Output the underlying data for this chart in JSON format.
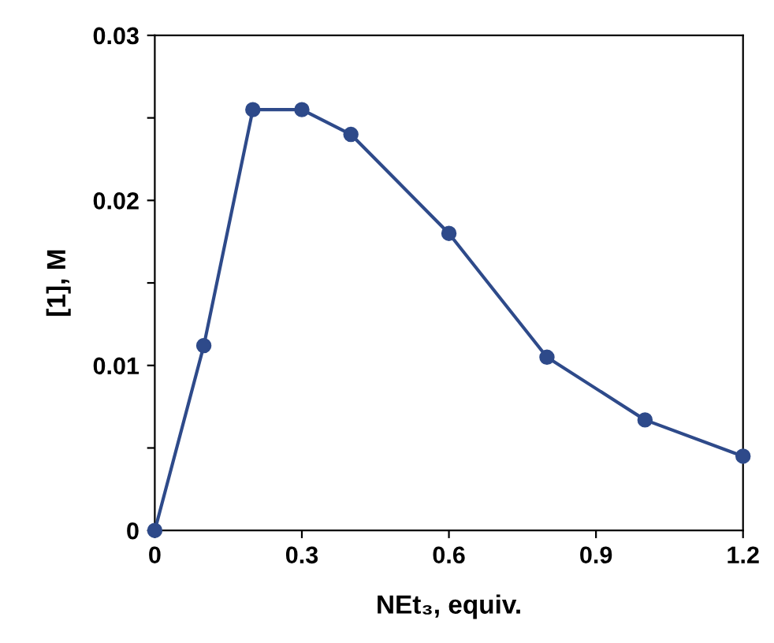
{
  "chart_data": {
    "type": "line",
    "xlabel": "NEt₃, equiv.",
    "ylabel": "[1], M",
    "x": [
      0,
      0.1,
      0.2,
      0.3,
      0.4,
      0.6,
      0.8,
      1.0,
      1.2
    ],
    "series": [
      {
        "color": "#2e4a8a",
        "values": [
          0,
          0.0112,
          0.0255,
          0.0255,
          0.024,
          0.018,
          0.0105,
          0.0067,
          0.0045
        ]
      }
    ],
    "xlim": [
      0,
      1.2
    ],
    "ylim": [
      0,
      0.03
    ],
    "xticks": [
      0,
      0.3,
      0.6,
      0.9,
      1.2
    ],
    "yticks": [
      0,
      {
        "value": 0.005,
        "label": null
      },
      0.01,
      {
        "value": 0.015,
        "label": null
      },
      0.02,
      {
        "value": 0.025,
        "label": null
      },
      0.03
    ],
    "marker": "circle",
    "line_style": "solid",
    "grid": false,
    "legend": false
  }
}
